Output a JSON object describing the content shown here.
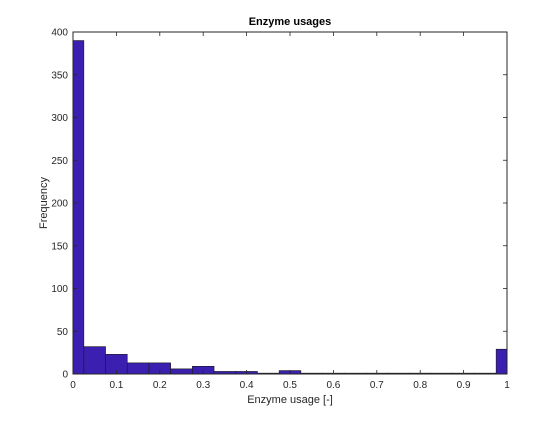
{
  "chart_data": {
    "type": "bar",
    "title": "Enzyme usages",
    "xlabel": "Enzyme usage [-]",
    "ylabel": "Frequency",
    "xlim": [
      0,
      1
    ],
    "ylim": [
      0,
      400
    ],
    "x_ticks": [
      "0",
      "0.1",
      "0.2",
      "0.3",
      "0.4",
      "0.5",
      "0.6",
      "0.7",
      "0.8",
      "0.9",
      "1"
    ],
    "y_ticks": [
      "0",
      "50",
      "100",
      "150",
      "200",
      "250",
      "300",
      "350",
      "400"
    ],
    "bin_edges": [
      0,
      0.025,
      0.075,
      0.125,
      0.175,
      0.225,
      0.275,
      0.325,
      0.375,
      0.425,
      0.475,
      0.525,
      0.575,
      0.625,
      0.675,
      0.725,
      0.775,
      0.825,
      0.875,
      0.925,
      0.975,
      1
    ],
    "values": [
      390,
      32,
      23,
      13,
      13,
      6,
      9,
      3,
      3,
      1,
      4,
      1,
      1,
      1,
      1,
      1,
      1,
      1,
      1,
      1,
      29
    ],
    "grid": false,
    "box": true,
    "colors": {
      "bar_fill": "#3a1fb0",
      "bar_edge": "#1a1a1a",
      "axis": "#262626",
      "background": "#ffffff"
    }
  }
}
